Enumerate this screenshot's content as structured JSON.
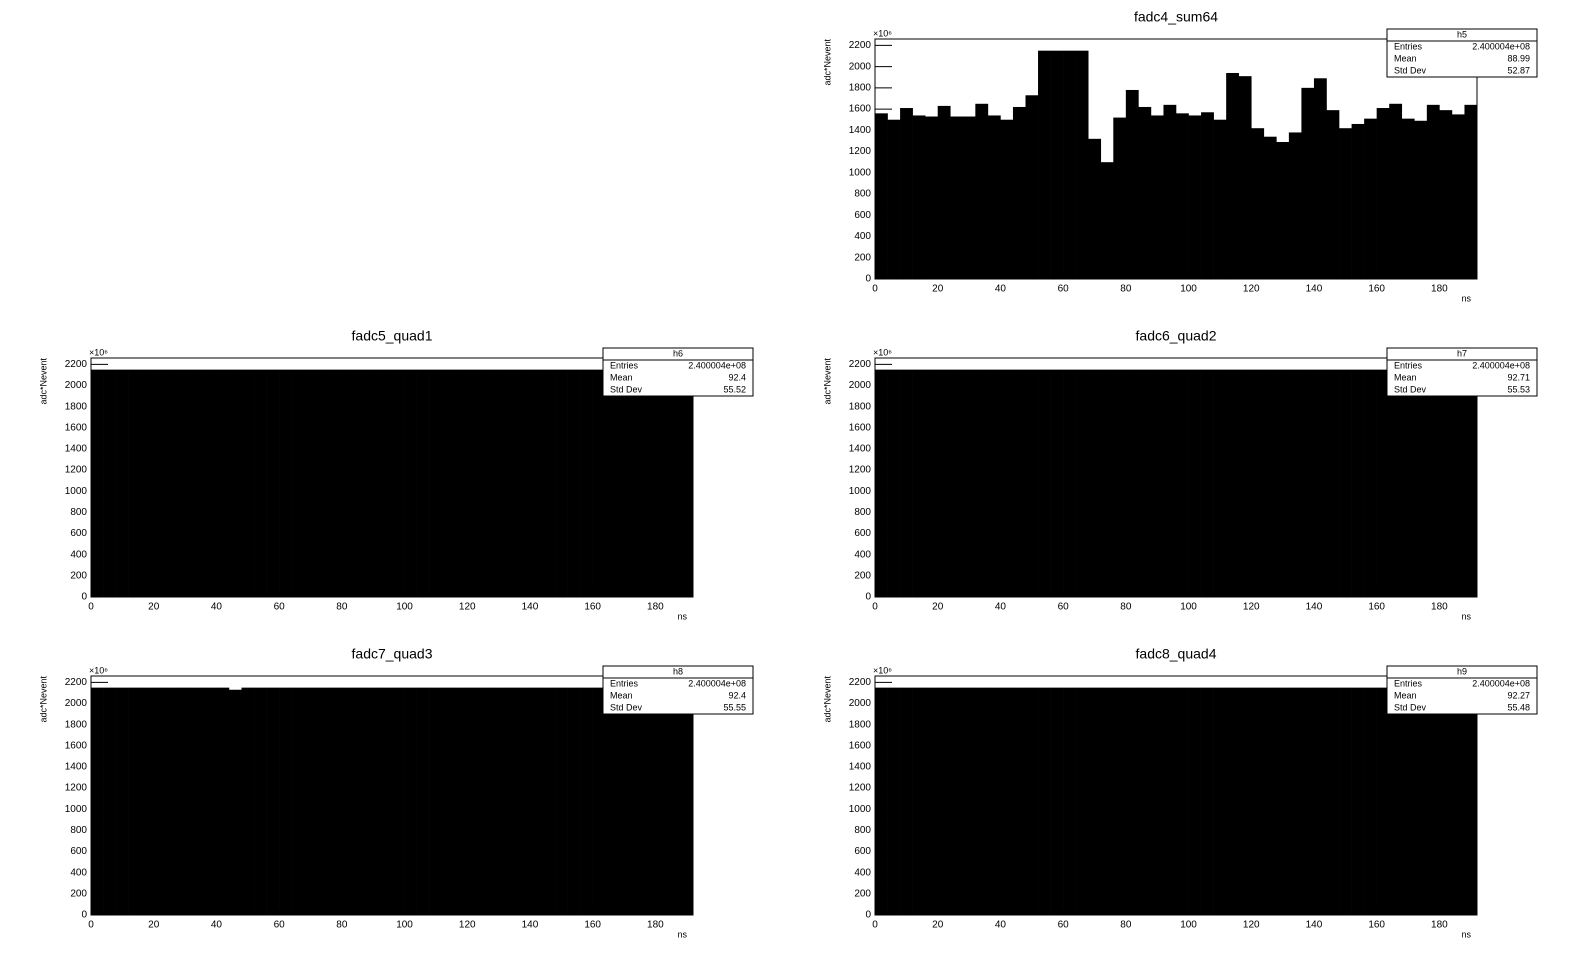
{
  "chart_data": [
    {
      "type": "histogram",
      "title": "fadc4_sum64",
      "x_label": "ns",
      "y_label": "adc*Nevent",
      "y_scale_label": "×10⁶",
      "color": "#000000",
      "bins": [
        0,
        4,
        8,
        12,
        16,
        20,
        24,
        28,
        32,
        36,
        40,
        44,
        48,
        52,
        56,
        60,
        64,
        68,
        72,
        76,
        80,
        84,
        88,
        92,
        96,
        100,
        104,
        108,
        112,
        116,
        120,
        124,
        128,
        132,
        136,
        140,
        144,
        148,
        152,
        156,
        160,
        164,
        168,
        172,
        176,
        180,
        184,
        188,
        192
      ],
      "values": [
        1560,
        1500,
        1610,
        1540,
        1530,
        1630,
        1530,
        1530,
        1650,
        1540,
        1500,
        1620,
        1730,
        2150,
        2150,
        2150,
        2150,
        1320,
        1100,
        1520,
        1780,
        1620,
        1540,
        1640,
        1560,
        1540,
        1570,
        1500,
        1940,
        1910,
        1420,
        1340,
        1290,
        1380,
        1800,
        1890,
        1590,
        1420,
        1460,
        1510,
        1610,
        1650,
        1510,
        1490,
        1640,
        1590,
        1550,
        1640
      ],
      "xlim": [
        0,
        192
      ],
      "ylim": [
        0,
        2260
      ],
      "xticks": [
        0,
        20,
        40,
        60,
        80,
        100,
        120,
        140,
        160,
        180
      ],
      "yticks": [
        0,
        200,
        400,
        600,
        800,
        1000,
        1200,
        1400,
        1600,
        1800,
        2000,
        2200
      ],
      "stats": {
        "name": "h5",
        "rows": [
          [
            "Entries",
            "2.400004e+08"
          ],
          [
            "Mean",
            "88.99"
          ],
          [
            "Std Dev",
            "52.87"
          ]
        ]
      }
    },
    {
      "type": "histogram",
      "title": "fadc5_quad1",
      "x_label": "ns",
      "y_label": "adc*Nevent",
      "y_scale_label": "×10⁶",
      "color": "#000000",
      "bins": [
        0,
        4,
        8,
        12,
        16,
        20,
        24,
        28,
        32,
        36,
        40,
        44,
        48,
        52,
        56,
        60,
        64,
        68,
        72,
        76,
        80,
        84,
        88,
        92,
        96,
        100,
        104,
        108,
        112,
        116,
        120,
        124,
        128,
        132,
        136,
        140,
        144,
        148,
        152,
        156,
        160,
        164,
        168,
        172,
        176,
        180,
        184,
        188,
        192
      ],
      "values": [
        2150,
        2150,
        2150,
        2150,
        2150,
        2150,
        2150,
        2150,
        2150,
        2150,
        2150,
        2150,
        2150,
        2150,
        2150,
        2150,
        2150,
        2150,
        2150,
        2150,
        2150,
        2150,
        2150,
        2150,
        2150,
        2150,
        2150,
        2150,
        2150,
        2150,
        2150,
        2150,
        2150,
        2150,
        2150,
        2150,
        2150,
        2150,
        2150,
        2150,
        2150,
        2150,
        2150,
        2150,
        2150,
        2150,
        2150,
        2150
      ],
      "xlim": [
        0,
        192
      ],
      "ylim": [
        0,
        2260
      ],
      "xticks": [
        0,
        20,
        40,
        60,
        80,
        100,
        120,
        140,
        160,
        180
      ],
      "yticks": [
        0,
        200,
        400,
        600,
        800,
        1000,
        1200,
        1400,
        1600,
        1800,
        2000,
        2200
      ],
      "stats": {
        "name": "h6",
        "rows": [
          [
            "Entries",
            "2.400004e+08"
          ],
          [
            "Mean",
            "92.4"
          ],
          [
            "Std Dev",
            "55.52"
          ]
        ]
      }
    },
    {
      "type": "histogram",
      "title": "fadc6_quad2",
      "x_label": "ns",
      "y_label": "adc*Nevent",
      "y_scale_label": "×10⁶",
      "color": "#000000",
      "bins": [
        0,
        4,
        8,
        12,
        16,
        20,
        24,
        28,
        32,
        36,
        40,
        44,
        48,
        52,
        56,
        60,
        64,
        68,
        72,
        76,
        80,
        84,
        88,
        92,
        96,
        100,
        104,
        108,
        112,
        116,
        120,
        124,
        128,
        132,
        136,
        140,
        144,
        148,
        152,
        156,
        160,
        164,
        168,
        172,
        176,
        180,
        184,
        188,
        192
      ],
      "values": [
        2150,
        2150,
        2150,
        2150,
        2150,
        2150,
        2150,
        2150,
        2150,
        2150,
        2150,
        2150,
        2150,
        2150,
        2150,
        2150,
        2150,
        2150,
        2150,
        2150,
        2150,
        2150,
        2150,
        2150,
        2150,
        2150,
        2150,
        2150,
        2150,
        2150,
        2150,
        2150,
        2150,
        2150,
        2150,
        2150,
        2150,
        2150,
        2150,
        2150,
        2150,
        2150,
        2150,
        2150,
        2150,
        2150,
        2150,
        2150
      ],
      "xlim": [
        0,
        192
      ],
      "ylim": [
        0,
        2260
      ],
      "xticks": [
        0,
        20,
        40,
        60,
        80,
        100,
        120,
        140,
        160,
        180
      ],
      "yticks": [
        0,
        200,
        400,
        600,
        800,
        1000,
        1200,
        1400,
        1600,
        1800,
        2000,
        2200
      ],
      "stats": {
        "name": "h7",
        "rows": [
          [
            "Entries",
            "2.400004e+08"
          ],
          [
            "Mean",
            "92.71"
          ],
          [
            "Std Dev",
            "55.53"
          ]
        ]
      }
    },
    {
      "type": "histogram",
      "title": "fadc7_quad3",
      "x_label": "ns",
      "y_label": "adc*Nevent",
      "y_scale_label": "×10⁶",
      "color": "#000000",
      "bins": [
        0,
        4,
        8,
        12,
        16,
        20,
        24,
        28,
        32,
        36,
        40,
        44,
        48,
        52,
        56,
        60,
        64,
        68,
        72,
        76,
        80,
        84,
        88,
        92,
        96,
        100,
        104,
        108,
        112,
        116,
        120,
        124,
        128,
        132,
        136,
        140,
        144,
        148,
        152,
        156,
        160,
        164,
        168,
        172,
        176,
        180,
        184,
        188,
        192
      ],
      "values": [
        2150,
        2150,
        2150,
        2150,
        2150,
        2150,
        2150,
        2150,
        2150,
        2150,
        2150,
        2130,
        2150,
        2150,
        2150,
        2150,
        2150,
        2150,
        2150,
        2150,
        2150,
        2150,
        2150,
        2150,
        2150,
        2150,
        2150,
        2150,
        2150,
        2150,
        2150,
        2150,
        2150,
        2150,
        2150,
        2150,
        2150,
        2150,
        2150,
        2150,
        2150,
        2150,
        2150,
        2150,
        2150,
        2150,
        2150,
        2150
      ],
      "xlim": [
        0,
        192
      ],
      "ylim": [
        0,
        2260
      ],
      "xticks": [
        0,
        20,
        40,
        60,
        80,
        100,
        120,
        140,
        160,
        180
      ],
      "yticks": [
        0,
        200,
        400,
        600,
        800,
        1000,
        1200,
        1400,
        1600,
        1800,
        2000,
        2200
      ],
      "stats": {
        "name": "h8",
        "rows": [
          [
            "Entries",
            "2.400004e+08"
          ],
          [
            "Mean",
            "92.4"
          ],
          [
            "Std Dev",
            "55.55"
          ]
        ]
      }
    },
    {
      "type": "histogram",
      "title": "fadc8_quad4",
      "x_label": "ns",
      "y_label": "adc*Nevent",
      "y_scale_label": "×10⁶",
      "color": "#000000",
      "bins": [
        0,
        4,
        8,
        12,
        16,
        20,
        24,
        28,
        32,
        36,
        40,
        44,
        48,
        52,
        56,
        60,
        64,
        68,
        72,
        76,
        80,
        84,
        88,
        92,
        96,
        100,
        104,
        108,
        112,
        116,
        120,
        124,
        128,
        132,
        136,
        140,
        144,
        148,
        152,
        156,
        160,
        164,
        168,
        172,
        176,
        180,
        184,
        188,
        192
      ],
      "values": [
        2150,
        2150,
        2150,
        2150,
        2150,
        2150,
        2150,
        2150,
        2150,
        2150,
        2150,
        2150,
        2150,
        2150,
        2150,
        2150,
        2150,
        2150,
        2150,
        2150,
        2150,
        2150,
        2150,
        2150,
        2150,
        2150,
        2150,
        2150,
        2150,
        2150,
        2150,
        2150,
        2150,
        2150,
        2150,
        2150,
        2150,
        2150,
        2150,
        2150,
        2150,
        2150,
        2150,
        2150,
        2150,
        2150,
        2150,
        2150
      ],
      "xlim": [
        0,
        192
      ],
      "ylim": [
        0,
        2260
      ],
      "xticks": [
        0,
        20,
        40,
        60,
        80,
        100,
        120,
        140,
        160,
        180
      ],
      "yticks": [
        0,
        200,
        400,
        600,
        800,
        1000,
        1200,
        1400,
        1600,
        1800,
        2000,
        2200
      ],
      "stats": {
        "name": "h9",
        "rows": [
          [
            "Entries",
            "2.400004e+08"
          ],
          [
            "Mean",
            "92.27"
          ],
          [
            "Std Dev",
            "55.48"
          ]
        ]
      }
    }
  ]
}
